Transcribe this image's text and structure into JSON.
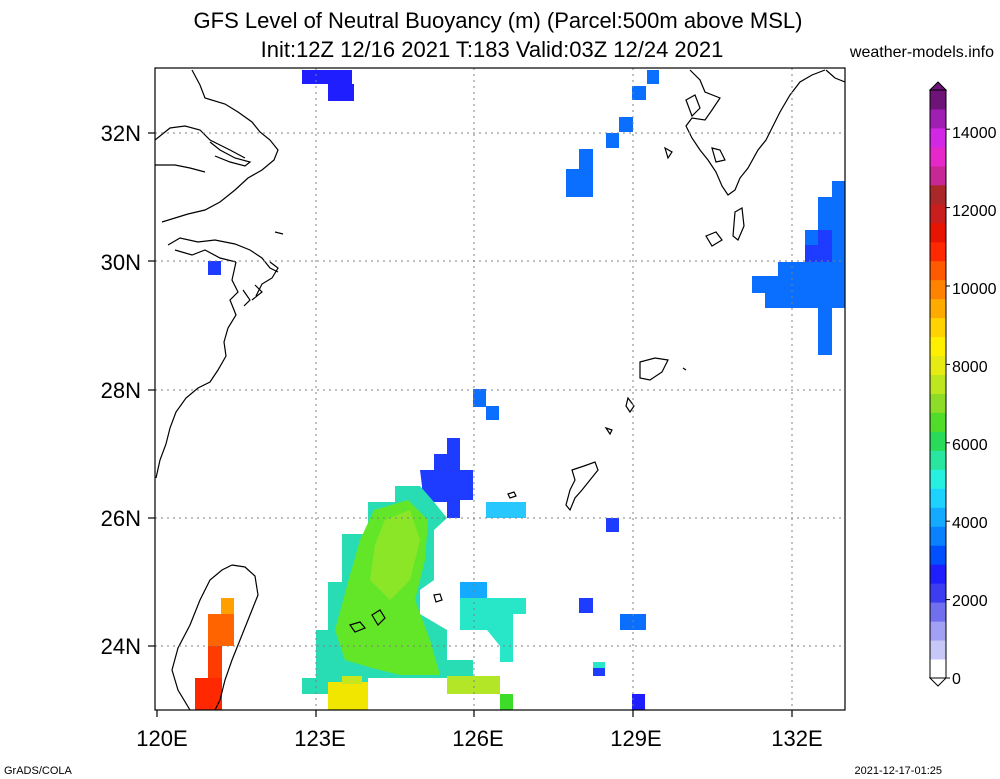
{
  "header": {
    "title_line1": "GFS Level of Neutral Buoyancy (m) (Parcel:500m above MSL)",
    "title_line2": "Init:12Z 12/16 2021 T:183 Valid:03Z 12/24 2021",
    "site": "weather-models.info"
  },
  "footer": {
    "left": "GrADS/COLA",
    "right": "2021-12-17-01:25"
  },
  "axes": {
    "x_ticks": [
      "120E",
      "123E",
      "126E",
      "129E",
      "132E"
    ],
    "y_ticks": [
      "24N",
      "26N",
      "28N",
      "30N",
      "32N"
    ]
  },
  "colorbar": {
    "labels": [
      "0",
      "2000",
      "4000",
      "6000",
      "8000",
      "10000",
      "12000",
      "14000"
    ],
    "colors": [
      "#ffffff",
      "#c8c8f8",
      "#a0a0f4",
      "#7070ee",
      "#3c3cf0",
      "#1e1eff",
      "#0050ff",
      "#0a82ff",
      "#14aaff",
      "#1ed2ff",
      "#28f0e0",
      "#28e6a0",
      "#28dc5a",
      "#50dc28",
      "#8cdc28",
      "#bee61e",
      "#e6eb14",
      "#fff000",
      "#ffd200",
      "#ffaa00",
      "#ff8200",
      "#ff5a00",
      "#ff2800",
      "#e61400",
      "#c81e1e",
      "#aa2828",
      "#c82896",
      "#e628c8",
      "#d228e6",
      "#a01eb4",
      "#6e1478"
    ]
  },
  "legend_colors": {
    "blue_dark": "#1e1eff",
    "blue": "#0a6eff",
    "cyan": "#28e6c8",
    "green": "#64e628",
    "yellow": "#f0f000",
    "orange": "#ff8c00",
    "red": "#ff2800"
  }
}
